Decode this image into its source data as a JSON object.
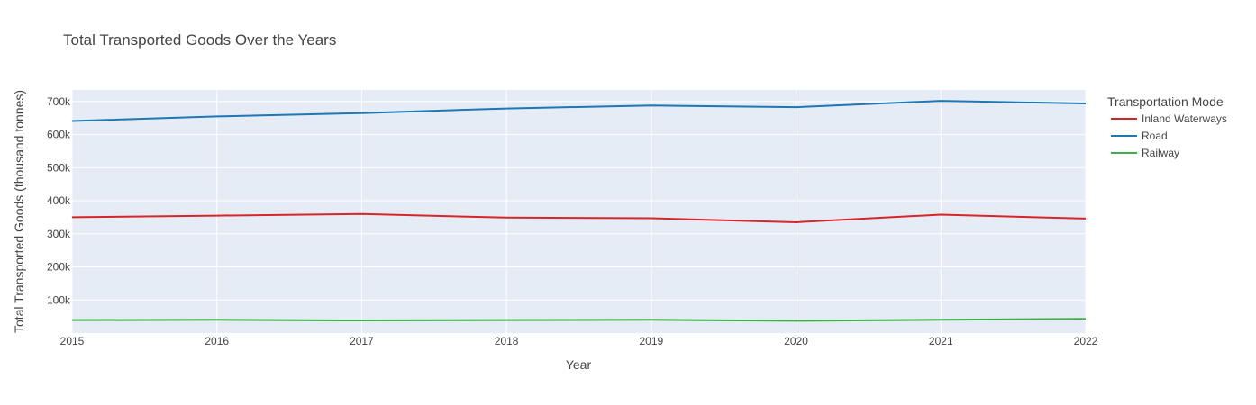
{
  "chart_data": {
    "type": "line",
    "title": "Total Transported Goods Over the Years",
    "xlabel": "Year",
    "ylabel": "Total Transported Goods (thousand tonnes)",
    "x": [
      2015,
      2016,
      2017,
      2018,
      2019,
      2020,
      2021,
      2022
    ],
    "x_tick_labels": [
      "2015",
      "2016",
      "2017",
      "2018",
      "2019",
      "2020",
      "2021",
      "2022"
    ],
    "xlim": [
      2015,
      2022
    ],
    "ylim": [
      0,
      735000
    ],
    "y_ticks": [
      100000,
      200000,
      300000,
      400000,
      500000,
      600000,
      700000
    ],
    "y_tick_labels": [
      "100k",
      "200k",
      "300k",
      "400k",
      "500k",
      "600k",
      "700k"
    ],
    "grid": true,
    "legend": {
      "title": "Transportation Mode",
      "placement": "right"
    },
    "series": [
      {
        "name": "Inland Waterways",
        "color": "#d62728",
        "values": [
          350000,
          355000,
          360000,
          349000,
          347000,
          335000,
          358000,
          346000
        ]
      },
      {
        "name": "Road",
        "color": "#1f77b4",
        "values": [
          641000,
          655000,
          665000,
          679000,
          688000,
          683000,
          702000,
          694000
        ]
      },
      {
        "name": "Railway",
        "color": "#3cb043",
        "values": [
          39000,
          40000,
          38000,
          39000,
          40000,
          37000,
          40000,
          43000
        ]
      }
    ],
    "colors": {
      "plot_bg": "#e5ecf6",
      "grid": "#ffffff",
      "text": "#444444"
    }
  }
}
